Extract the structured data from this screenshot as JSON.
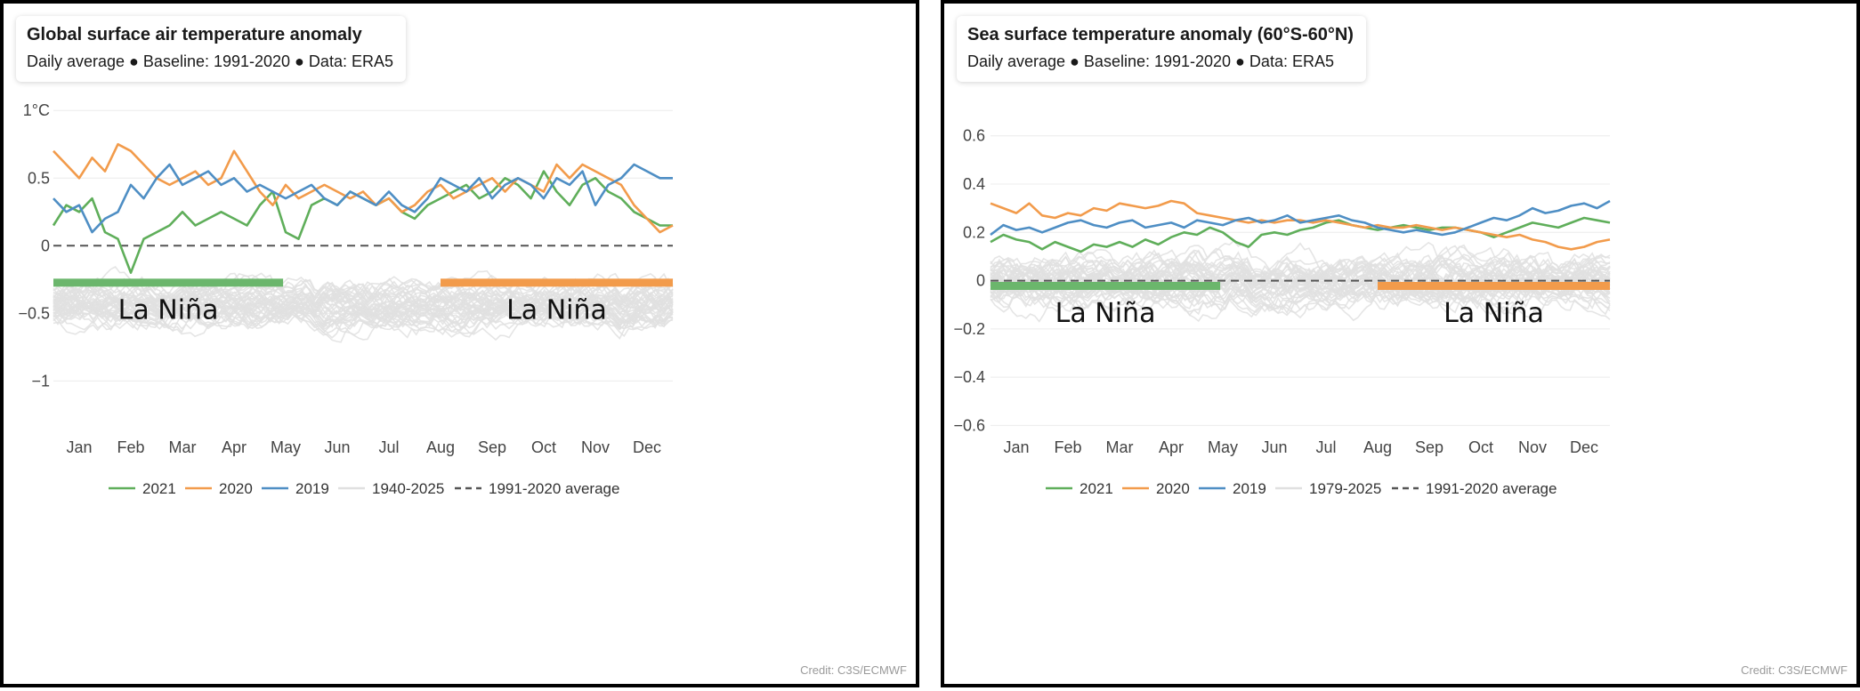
{
  "colors": {
    "y2021": "#5fae5a",
    "y2020": "#f29b4b",
    "y2019": "#4e8ec4",
    "background_years": "#e0e0e0",
    "baseline": "#555555",
    "la_nina_2021": "#6bb66c",
    "la_nina_2020": "#f29b4b"
  },
  "panels": [
    {
      "title": "Global surface air temperature anomaly",
      "subtitle": "Daily average ● Baseline: 1991-2020 ● Data: ERA5",
      "credit": "Credit: C3S/ECMWF",
      "annotations": [
        {
          "text": "La Niña",
          "year": "2021"
        },
        {
          "text": "La Niña",
          "year": "2020"
        }
      ]
    },
    {
      "title": "Sea surface temperature anomaly (60°S-60°N)",
      "subtitle": "Daily average ● Baseline: 1991-2020 ● Data: ERA5",
      "credit": "Credit: C3S/ECMWF",
      "annotations": [
        {
          "text": "La Niña",
          "year": "2021"
        },
        {
          "text": "La Niña",
          "year": "2020"
        }
      ]
    }
  ],
  "chart_data": [
    {
      "type": "line",
      "title": "Global surface air temperature anomaly",
      "subtitle": "Daily average ● Baseline: 1991-2020 ● Data: ERA5",
      "ylim": [
        -1.3,
        1.1
      ],
      "yticks": [
        -1,
        -0.5,
        0,
        0.5,
        1
      ],
      "ytick_labels": [
        "−1",
        "−0.5",
        "0",
        "0.5",
        "1°C"
      ],
      "x_domain": [
        0,
        12
      ],
      "xtick_positions": [
        0.5,
        1.5,
        2.5,
        3.5,
        4.5,
        5.5,
        6.5,
        7.5,
        8.5,
        9.5,
        10.5,
        11.5
      ],
      "xtick_labels": [
        "Jan",
        "Feb",
        "Mar",
        "Apr",
        "May",
        "Jun",
        "Jul",
        "Aug",
        "Sep",
        "Oct",
        "Nov",
        "Dec"
      ],
      "grid": true,
      "legend_position": "bottom",
      "legend": [
        "2021",
        "2020",
        "2019",
        "1940-2025",
        "1991-2020 average"
      ],
      "baseline_value": 0,
      "background_years": {
        "label": "1940-2025",
        "center": -0.35,
        "spread": 0.35
      },
      "series": [
        {
          "name": "2021",
          "x": [
            0,
            0.25,
            0.5,
            0.75,
            1.0,
            1.25,
            1.5,
            1.75,
            2.0,
            2.25,
            2.5,
            2.75,
            3.0,
            3.25,
            3.5,
            3.75,
            4.0,
            4.25,
            4.5,
            4.75,
            5.0,
            5.25,
            5.5,
            5.75,
            6.0,
            6.25,
            6.5,
            6.75,
            7.0,
            7.25,
            7.5,
            7.75,
            8.0,
            8.25,
            8.5,
            8.75,
            9.0,
            9.25,
            9.5,
            9.75,
            10.0,
            10.25,
            10.5,
            10.75,
            11.0,
            11.25,
            11.5,
            11.75,
            12.0
          ],
          "y": [
            0.15,
            0.3,
            0.25,
            0.35,
            0.1,
            0.05,
            -0.2,
            0.05,
            0.1,
            0.15,
            0.25,
            0.15,
            0.2,
            0.25,
            0.2,
            0.15,
            0.3,
            0.4,
            0.1,
            0.05,
            0.3,
            0.35,
            0.3,
            0.4,
            0.35,
            0.3,
            0.35,
            0.25,
            0.2,
            0.3,
            0.35,
            0.4,
            0.45,
            0.35,
            0.4,
            0.5,
            0.45,
            0.35,
            0.55,
            0.4,
            0.3,
            0.45,
            0.5,
            0.4,
            0.35,
            0.25,
            0.2,
            0.15,
            0.15
          ]
        },
        {
          "name": "2020",
          "x": [
            0,
            0.25,
            0.5,
            0.75,
            1.0,
            1.25,
            1.5,
            1.75,
            2.0,
            2.25,
            2.5,
            2.75,
            3.0,
            3.25,
            3.5,
            3.75,
            4.0,
            4.25,
            4.5,
            4.75,
            5.0,
            5.25,
            5.5,
            5.75,
            6.0,
            6.25,
            6.5,
            6.75,
            7.0,
            7.25,
            7.5,
            7.75,
            8.0,
            8.25,
            8.5,
            8.75,
            9.0,
            9.25,
            9.5,
            9.75,
            10.0,
            10.25,
            10.5,
            10.75,
            11.0,
            11.25,
            11.5,
            11.75,
            12.0
          ],
          "y": [
            0.7,
            0.6,
            0.5,
            0.65,
            0.55,
            0.75,
            0.7,
            0.6,
            0.5,
            0.45,
            0.5,
            0.55,
            0.45,
            0.5,
            0.7,
            0.55,
            0.4,
            0.3,
            0.45,
            0.35,
            0.4,
            0.45,
            0.4,
            0.35,
            0.4,
            0.3,
            0.35,
            0.25,
            0.3,
            0.4,
            0.45,
            0.35,
            0.4,
            0.45,
            0.5,
            0.4,
            0.5,
            0.45,
            0.4,
            0.6,
            0.5,
            0.6,
            0.55,
            0.5,
            0.45,
            0.3,
            0.2,
            0.1,
            0.15
          ]
        },
        {
          "name": "2019",
          "x": [
            0,
            0.25,
            0.5,
            0.75,
            1.0,
            1.25,
            1.5,
            1.75,
            2.0,
            2.25,
            2.5,
            2.75,
            3.0,
            3.25,
            3.5,
            3.75,
            4.0,
            4.25,
            4.5,
            4.75,
            5.0,
            5.25,
            5.5,
            5.75,
            6.0,
            6.25,
            6.5,
            6.75,
            7.0,
            7.25,
            7.5,
            7.75,
            8.0,
            8.25,
            8.5,
            8.75,
            9.0,
            9.25,
            9.5,
            9.75,
            10.0,
            10.25,
            10.5,
            10.75,
            11.0,
            11.25,
            11.5,
            11.75,
            12.0
          ],
          "y": [
            0.35,
            0.25,
            0.3,
            0.1,
            0.2,
            0.25,
            0.45,
            0.35,
            0.5,
            0.6,
            0.45,
            0.5,
            0.55,
            0.45,
            0.5,
            0.4,
            0.45,
            0.4,
            0.35,
            0.4,
            0.45,
            0.35,
            0.3,
            0.4,
            0.35,
            0.3,
            0.4,
            0.3,
            0.25,
            0.35,
            0.5,
            0.45,
            0.4,
            0.5,
            0.35,
            0.45,
            0.5,
            0.45,
            0.35,
            0.5,
            0.45,
            0.55,
            0.3,
            0.45,
            0.5,
            0.6,
            0.55,
            0.5,
            0.5
          ]
        }
      ],
      "annotations": [
        {
          "text": "La Niña",
          "year": "2021",
          "x_start": 0,
          "x_end": 4.45,
          "y": -0.27
        },
        {
          "text": "La Niña",
          "year": "2020",
          "x_start": 7.5,
          "x_end": 12,
          "y": -0.27
        }
      ],
      "credit": "Credit: C3S/ECMWF"
    },
    {
      "type": "line",
      "title": "Sea surface temperature anomaly (60°S-60°N)",
      "subtitle": "Daily average ● Baseline: 1991-2020 ● Data: ERA5",
      "ylim": [
        -0.65,
        0.75
      ],
      "yticks": [
        -0.6,
        -0.4,
        -0.2,
        0,
        0.2,
        0.4,
        0.6
      ],
      "ytick_labels": [
        "−0.6",
        "−0.4",
        "−0.2",
        "0",
        "0.2",
        "0.4",
        "0.6"
      ],
      "x_domain": [
        0,
        12
      ],
      "xtick_positions": [
        0.5,
        1.5,
        2.5,
        3.5,
        4.5,
        5.5,
        6.5,
        7.5,
        8.5,
        9.5,
        10.5,
        11.5
      ],
      "xtick_labels": [
        "Jan",
        "Feb",
        "Mar",
        "Apr",
        "May",
        "Jun",
        "Jul",
        "Aug",
        "Sep",
        "Oct",
        "Nov",
        "Dec"
      ],
      "grid": true,
      "legend_position": "bottom",
      "legend": [
        "2021",
        "2020",
        "2019",
        "1979-2025",
        "1991-2020 average"
      ],
      "baseline_value": 0,
      "background_years": {
        "label": "1979-2025",
        "center": -0.12,
        "spread": 0.22
      },
      "series": [
        {
          "name": "2021",
          "x": [
            0,
            0.25,
            0.5,
            0.75,
            1.0,
            1.25,
            1.5,
            1.75,
            2.0,
            2.25,
            2.5,
            2.75,
            3.0,
            3.25,
            3.5,
            3.75,
            4.0,
            4.25,
            4.5,
            4.75,
            5.0,
            5.25,
            5.5,
            5.75,
            6.0,
            6.25,
            6.5,
            6.75,
            7.0,
            7.25,
            7.5,
            7.75,
            8.0,
            8.25,
            8.5,
            8.75,
            9.0,
            9.25,
            9.5,
            9.75,
            10.0,
            10.25,
            10.5,
            10.75,
            11.0,
            11.25,
            11.5,
            11.75,
            12.0
          ],
          "y": [
            0.16,
            0.19,
            0.17,
            0.16,
            0.13,
            0.16,
            0.14,
            0.12,
            0.15,
            0.14,
            0.16,
            0.14,
            0.17,
            0.15,
            0.18,
            0.2,
            0.19,
            0.22,
            0.2,
            0.16,
            0.14,
            0.19,
            0.2,
            0.19,
            0.21,
            0.22,
            0.24,
            0.25,
            0.23,
            0.22,
            0.21,
            0.22,
            0.23,
            0.22,
            0.21,
            0.22,
            0.22,
            0.21,
            0.2,
            0.18,
            0.2,
            0.22,
            0.24,
            0.23,
            0.22,
            0.24,
            0.26,
            0.25,
            0.24
          ]
        },
        {
          "name": "2020",
          "x": [
            0,
            0.25,
            0.5,
            0.75,
            1.0,
            1.25,
            1.5,
            1.75,
            2.0,
            2.25,
            2.5,
            2.75,
            3.0,
            3.25,
            3.5,
            3.75,
            4.0,
            4.25,
            4.5,
            4.75,
            5.0,
            5.25,
            5.5,
            5.75,
            6.0,
            6.25,
            6.5,
            6.75,
            7.0,
            7.25,
            7.5,
            7.75,
            8.0,
            8.25,
            8.5,
            8.75,
            9.0,
            9.25,
            9.5,
            9.75,
            10.0,
            10.25,
            10.5,
            10.75,
            11.0,
            11.25,
            11.5,
            11.75,
            12.0
          ],
          "y": [
            0.32,
            0.3,
            0.28,
            0.32,
            0.27,
            0.26,
            0.28,
            0.27,
            0.3,
            0.29,
            0.32,
            0.31,
            0.3,
            0.31,
            0.33,
            0.32,
            0.28,
            0.27,
            0.26,
            0.25,
            0.24,
            0.25,
            0.24,
            0.25,
            0.25,
            0.24,
            0.25,
            0.24,
            0.23,
            0.22,
            0.23,
            0.22,
            0.22,
            0.23,
            0.22,
            0.21,
            0.22,
            0.21,
            0.2,
            0.19,
            0.18,
            0.19,
            0.17,
            0.16,
            0.14,
            0.13,
            0.14,
            0.16,
            0.17
          ]
        },
        {
          "name": "2019",
          "x": [
            0,
            0.25,
            0.5,
            0.75,
            1.0,
            1.25,
            1.5,
            1.75,
            2.0,
            2.25,
            2.5,
            2.75,
            3.0,
            3.25,
            3.5,
            3.75,
            4.0,
            4.25,
            4.5,
            4.75,
            5.0,
            5.25,
            5.5,
            5.75,
            6.0,
            6.25,
            6.5,
            6.75,
            7.0,
            7.25,
            7.5,
            7.75,
            8.0,
            8.25,
            8.5,
            8.75,
            9.0,
            9.25,
            9.5,
            9.75,
            10.0,
            10.25,
            10.5,
            10.75,
            11.0,
            11.25,
            11.5,
            11.75,
            12.0
          ],
          "y": [
            0.19,
            0.23,
            0.21,
            0.22,
            0.2,
            0.22,
            0.24,
            0.25,
            0.23,
            0.22,
            0.24,
            0.25,
            0.22,
            0.23,
            0.24,
            0.22,
            0.25,
            0.24,
            0.23,
            0.25,
            0.26,
            0.24,
            0.25,
            0.27,
            0.24,
            0.25,
            0.26,
            0.27,
            0.25,
            0.24,
            0.22,
            0.21,
            0.2,
            0.21,
            0.2,
            0.19,
            0.2,
            0.22,
            0.24,
            0.26,
            0.25,
            0.27,
            0.3,
            0.28,
            0.29,
            0.31,
            0.32,
            0.3,
            0.33
          ]
        }
      ],
      "annotations": [
        {
          "text": "La Niña",
          "year": "2021",
          "x_start": 0,
          "x_end": 4.45,
          "y": -0.02
        },
        {
          "text": "La Niña",
          "year": "2020",
          "x_start": 7.5,
          "x_end": 12,
          "y": -0.02
        }
      ],
      "credit": "Credit: C3S/ECMWF"
    }
  ]
}
